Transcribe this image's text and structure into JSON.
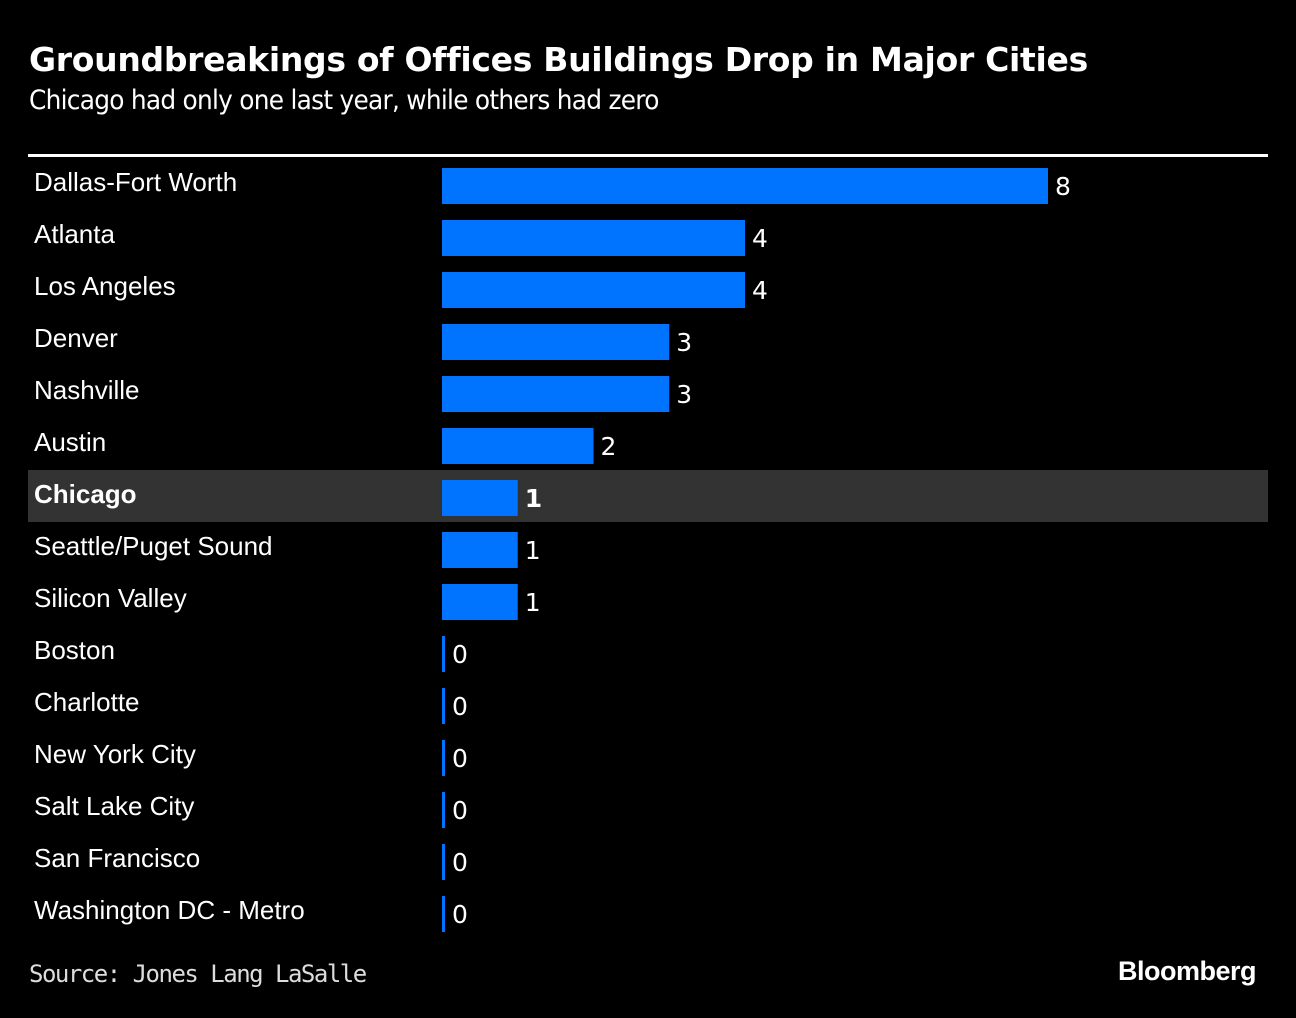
{
  "chart_data": {
    "type": "bar",
    "orientation": "horizontal",
    "title": "Groundbreakings of Offices Buildings Drop in Major Cities",
    "subtitle": "Chicago had only one last year, while others had zero",
    "categories": [
      "Dallas-Fort Worth",
      "Atlanta",
      "Los Angeles",
      "Denver",
      "Nashville",
      "Austin",
      "Chicago",
      "Seattle/Puget Sound",
      "Silicon Valley",
      "Boston",
      "Charlotte",
      "New York City",
      "Salt Lake City",
      "San Francisco",
      "Washington DC - Metro"
    ],
    "values": [
      8,
      4,
      4,
      3,
      3,
      2,
      1,
      1,
      1,
      0,
      0,
      0,
      0,
      0,
      0
    ],
    "highlight": "Chicago",
    "xlim": [
      0,
      8
    ],
    "xlabel": "",
    "ylabel": "",
    "grid": false,
    "data_labels": true,
    "source": "Source: Jones Lang LaSalle",
    "colors": {
      "bar": "#0073ff",
      "highlight_row": "#333333",
      "background": "#000000",
      "text": "#ffffff"
    }
  },
  "footer": {
    "source": "Source: Jones Lang LaSalle",
    "brand": "Bloomberg"
  }
}
